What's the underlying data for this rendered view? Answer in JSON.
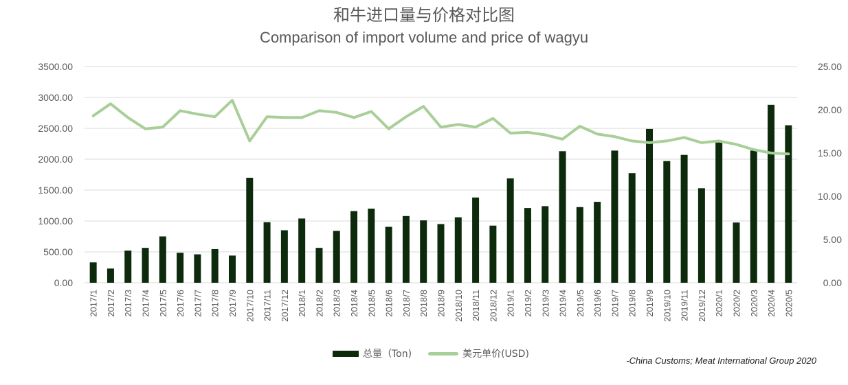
{
  "title_cn": "和牛进口量与价格对比图",
  "title_en": "Comparison of import volume and price of wagyu",
  "source": "-China Customs; Meat International Group 2020",
  "colors": {
    "bar": "#0d2a0d",
    "line": "#a9cf99",
    "grid": "#d9d9d9",
    "text": "#595959"
  },
  "chart_data": {
    "type": "bar",
    "categories": [
      "2017/1",
      "2017/2",
      "2017/3",
      "2017/4",
      "2017/5",
      "2017/6",
      "2017/7",
      "2017/8",
      "2017/9",
      "2017/10",
      "2017/11",
      "2017/12",
      "2018/1",
      "2018/2",
      "2018/3",
      "2018/4",
      "2018/5",
      "2018/6",
      "2018/7",
      "2018/8",
      "2018/9",
      "2018/10",
      "2018/11",
      "2018/12",
      "2019/1",
      "2019/2",
      "2019/3",
      "2019/4",
      "2019/5",
      "2019/6",
      "2019/7",
      "2019/8",
      "2019/9",
      "2019/10",
      "2019/11",
      "2019/12",
      "2020/1",
      "2020/2",
      "2020/3",
      "2020/4",
      "2020/5"
    ],
    "series": [
      {
        "name": "总量（Ton)",
        "type": "bar",
        "axis": "left",
        "values": [
          330,
          230,
          520,
          565,
          750,
          485,
          460,
          545,
          440,
          1700,
          980,
          850,
          1040,
          565,
          840,
          1160,
          1200,
          905,
          1080,
          1010,
          950,
          1060,
          1380,
          925,
          1690,
          1210,
          1240,
          2130,
          1225,
          1310,
          2140,
          1775,
          2490,
          1970,
          2070,
          1530,
          2270,
          975,
          2140,
          2880,
          2550
        ]
      },
      {
        "name": "美元单价(USD)",
        "type": "line",
        "axis": "right",
        "values": [
          19.3,
          20.7,
          19.1,
          17.8,
          18.0,
          19.9,
          19.5,
          19.2,
          21.1,
          16.4,
          19.2,
          19.1,
          19.1,
          19.9,
          19.7,
          19.1,
          19.8,
          17.8,
          19.2,
          20.4,
          18.0,
          18.3,
          18.0,
          19.0,
          17.3,
          17.4,
          17.1,
          16.6,
          18.1,
          17.2,
          16.9,
          16.4,
          16.2,
          16.4,
          16.8,
          16.2,
          16.4,
          16.0,
          15.4,
          15.0,
          14.9
        ]
      }
    ],
    "y_left": {
      "min": 0,
      "max": 3500,
      "ticks": [
        "0.00",
        "500.00",
        "1000.00",
        "1500.00",
        "2000.00",
        "2500.00",
        "3000.00",
        "3500.00"
      ]
    },
    "y_right": {
      "min": 0,
      "max": 25,
      "ticks": [
        "0.00",
        "5.00",
        "10.00",
        "15.00",
        "20.00",
        "25.00"
      ]
    },
    "grid": true,
    "legend": "bottom"
  }
}
